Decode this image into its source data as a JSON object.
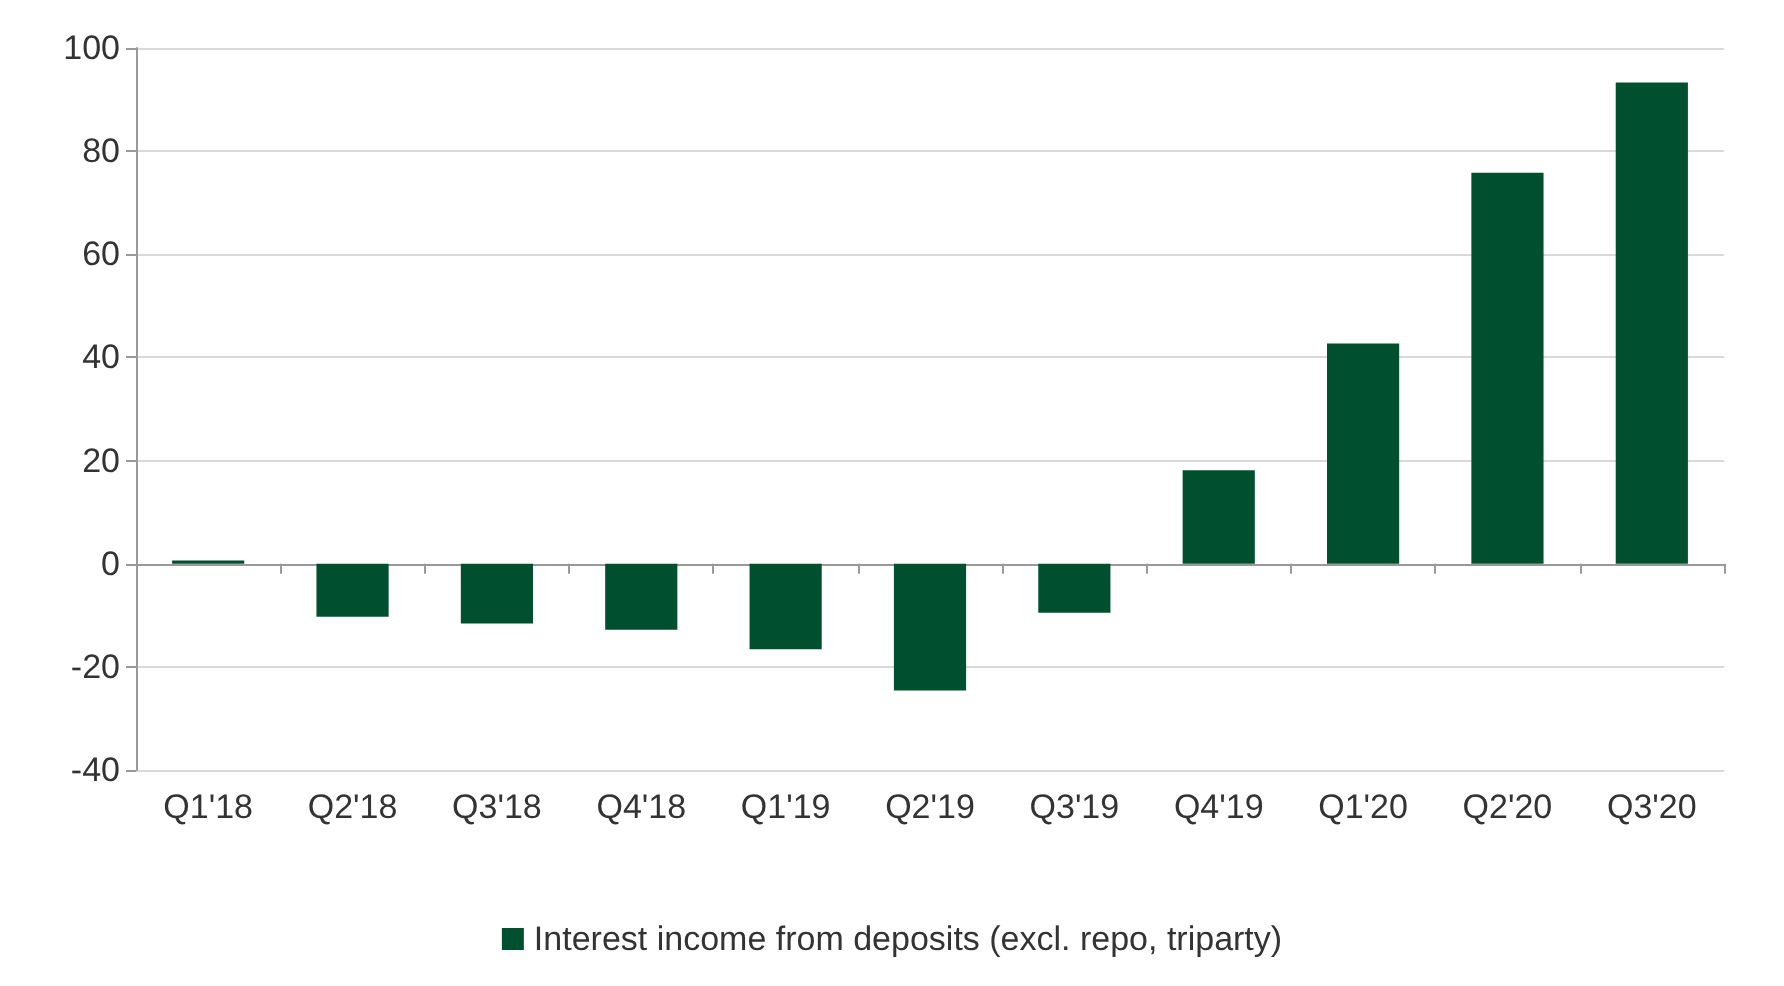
{
  "chart_data": {
    "type": "bar",
    "categories": [
      "Q1'18",
      "Q2'18",
      "Q3'18",
      "Q4'18",
      "Q1'19",
      "Q2'19",
      "Q3'19",
      "Q4'19",
      "Q1'20",
      "Q2'20",
      "Q3'20"
    ],
    "series": [
      {
        "name": "Interest income from deposits (excl. repo, triparty)",
        "color": "#005030",
        "values": [
          0.6,
          -10.3,
          -11.6,
          -12.8,
          -16.6,
          -24.6,
          -9.5,
          18.1,
          42.7,
          75.8,
          93.3
        ]
      }
    ],
    "ylim": [
      -40,
      100
    ],
    "yticks": [
      -40,
      -20,
      0,
      20,
      40,
      60,
      80,
      100
    ],
    "grid": "y",
    "legend": "bottom"
  }
}
